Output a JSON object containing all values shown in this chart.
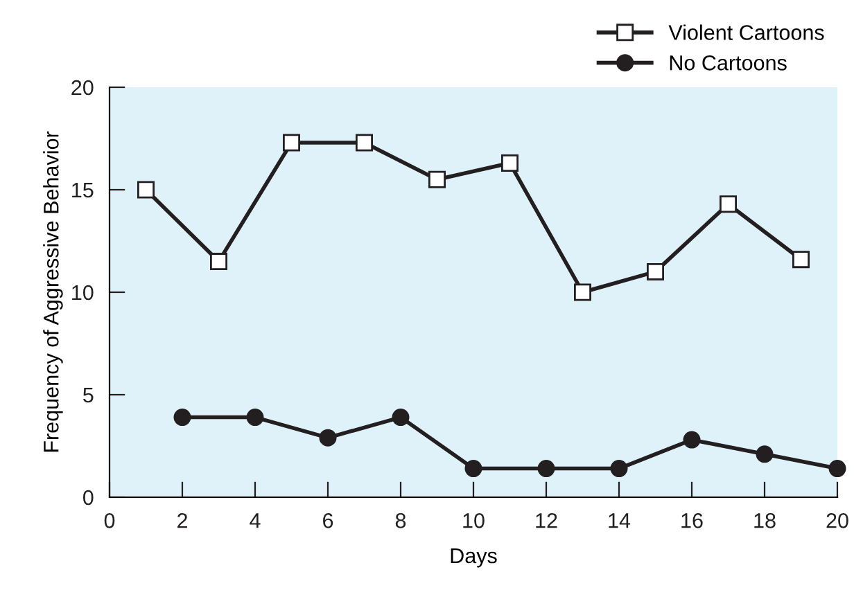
{
  "chart_data": {
    "type": "line",
    "xlabel": "Days",
    "ylabel": "Frequency of Aggressive Behavior",
    "xlim": [
      0,
      20
    ],
    "ylim": [
      0,
      20
    ],
    "xticks": [
      0,
      2,
      4,
      6,
      8,
      10,
      12,
      14,
      16,
      18,
      20
    ],
    "yticks": [
      0,
      5,
      10,
      15,
      20
    ],
    "grid": false,
    "legend": "top right",
    "series": [
      {
        "name": "Violent Cartoons",
        "color": "#231f20",
        "marker": "square",
        "x": [
          1,
          3,
          5,
          7,
          9,
          11,
          13,
          15,
          17,
          19
        ],
        "values": [
          15,
          11.5,
          17.3,
          17.3,
          15.5,
          16.3,
          10,
          11,
          14.3,
          11.6
        ]
      },
      {
        "name": "No Cartoons",
        "color": "#231f20",
        "marker": "circle",
        "x": [
          2,
          4,
          6,
          8,
          10,
          12,
          14,
          16,
          18,
          20
        ],
        "values": [
          3.9,
          3.9,
          2.9,
          3.9,
          1.4,
          1.4,
          1.4,
          2.8,
          2.1,
          1.4
        ]
      }
    ]
  }
}
